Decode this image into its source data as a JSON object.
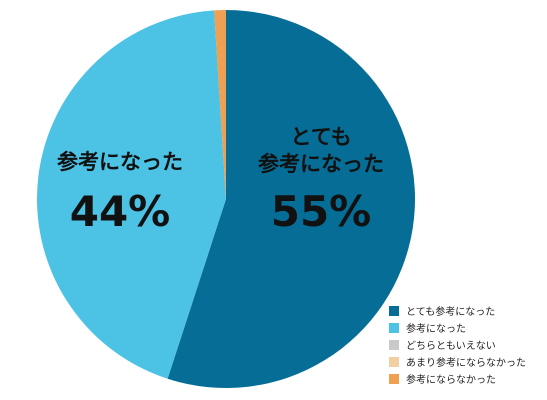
{
  "chart_data": {
    "type": "pie",
    "slices": [
      {
        "label": "とても参考になった",
        "value": 55,
        "color": "#066d96",
        "inside_text": "とても\n参考になった",
        "percent_text": "55%"
      },
      {
        "label": "参考になった",
        "value": 44,
        "color": "#4cc2e4",
        "inside_text": "参考になった",
        "percent_text": "44%"
      },
      {
        "label": "どちらともいえない",
        "value": 0,
        "color": "#c9c9c9",
        "inside_text": "",
        "percent_text": ""
      },
      {
        "label": "あまり参考にならなかった",
        "value": 0,
        "color": "#f2cfa3",
        "inside_text": "",
        "percent_text": ""
      },
      {
        "label": "参考にならなかった",
        "value": 1,
        "color": "#f0a052",
        "inside_text": "",
        "percent_text": ""
      }
    ],
    "legend_position": "bottom-right"
  }
}
